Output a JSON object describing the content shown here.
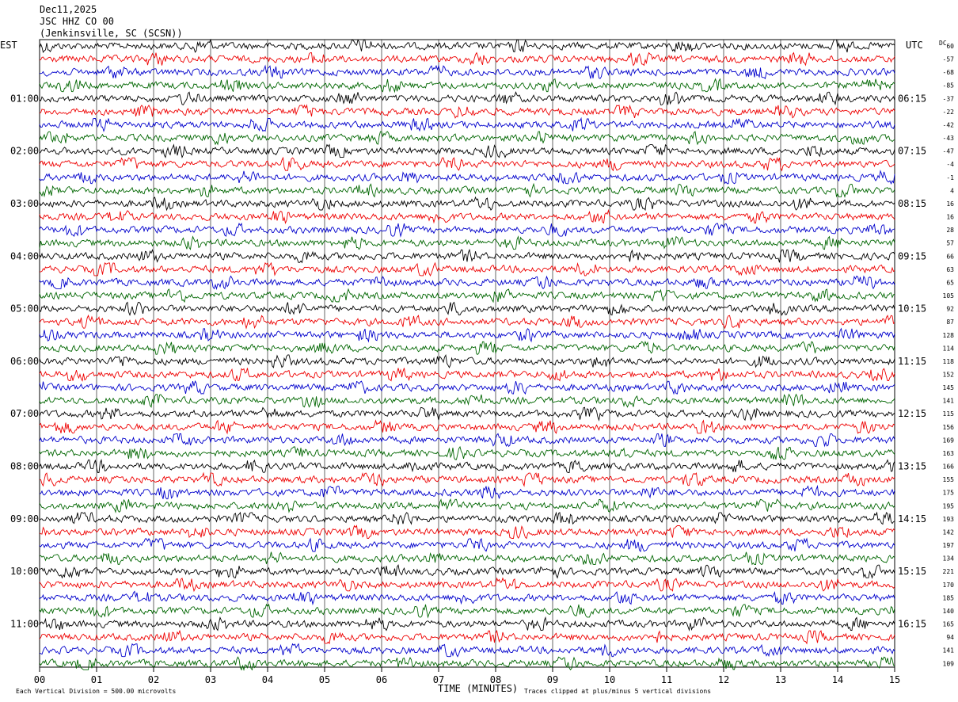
{
  "header": {
    "date": "Dec11,2025",
    "station": "JSC HHZ CO 00",
    "location": "(Jenkinsville, SC (SCSN))"
  },
  "left_tz": "EST",
  "right_tz": "UTC",
  "dc_header": "DC",
  "footer": {
    "scale_note": "Each Vertical Division =  500.00 microvolts",
    "x_title": "TIME (MINUTES)",
    "clip_note": "Traces clipped at plus/minus 5 vertical divisions"
  },
  "colors": {
    "cycle": [
      "#000000",
      "#ee0000",
      "#0000cc",
      "#006600"
    ],
    "grid": "#000000"
  },
  "chart_data": {
    "type": "line",
    "x_ticks": [
      "00",
      "01",
      "02",
      "03",
      "04",
      "05",
      "06",
      "07",
      "08",
      "09",
      "10",
      "11",
      "12",
      "13",
      "14",
      "15"
    ],
    "xlim": [
      0,
      15
    ],
    "trace_count": 48,
    "left_hour_labels": [
      "01:00",
      "02:00",
      "03:00",
      "04:00",
      "05:00",
      "06:00",
      "07:00",
      "08:00",
      "09:00",
      "10:00",
      "11:00"
    ],
    "right_hour_labels": [
      "06:15",
      "07:15",
      "08:15",
      "09:15",
      "10:15",
      "11:15",
      "12:15",
      "13:15",
      "14:15",
      "15:15",
      "16:15"
    ],
    "dc_values": [
      60,
      -57,
      -68,
      -85,
      -37,
      -22,
      -42,
      -43,
      -47,
      -4,
      -1,
      4,
      16,
      16,
      28,
      57,
      66,
      63,
      65,
      105,
      92,
      87,
      128,
      114,
      118,
      152,
      145,
      141,
      115,
      156,
      169,
      163,
      166,
      155,
      175,
      195,
      193,
      142,
      197,
      134,
      221,
      170,
      185,
      140,
      165,
      94,
      141,
      109
    ]
  }
}
